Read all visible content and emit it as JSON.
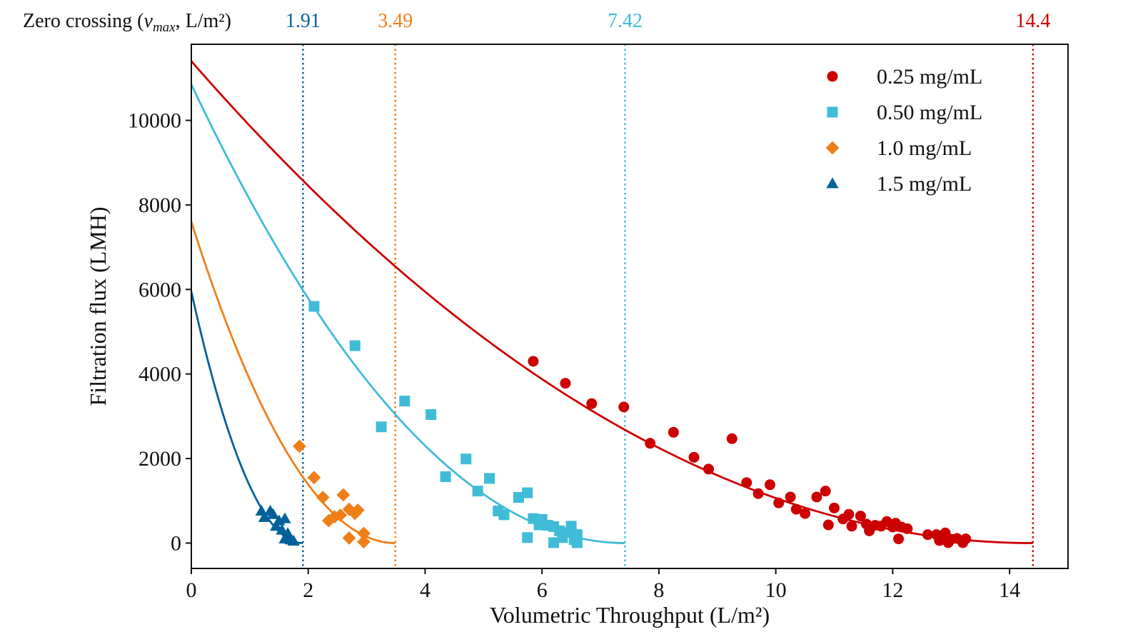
{
  "chart_data": {
    "type": "scatter",
    "xlabel": "Volumetric Throughput (L/m²)",
    "ylabel": "Filtration flux (LMH)",
    "xlim": [
      0,
      15
    ],
    "ylim": [
      -600,
      11800
    ],
    "xticks": [
      0,
      2,
      4,
      6,
      8,
      10,
      12,
      14
    ],
    "yticks": [
      0,
      2000,
      4000,
      6000,
      8000,
      10000
    ],
    "grid": false,
    "legend_position": "top-right",
    "zero_crossing": {
      "title_prefix": "Zero crossing (",
      "title_var": "v",
      "title_sub": "max",
      "title_suffix": ", L/m²)",
      "labels": [
        "1.91",
        "3.49",
        "7.42",
        "14.4"
      ]
    },
    "series": [
      {
        "name": "0.25 mg/mL",
        "marker": "circle",
        "color": "#cc0000",
        "fit": {
          "y0": 11400,
          "vmax": 14.4
        },
        "points": [
          [
            5.85,
            4300
          ],
          [
            6.4,
            3780
          ],
          [
            6.85,
            3300
          ],
          [
            7.4,
            3220
          ],
          [
            7.85,
            2360
          ],
          [
            8.25,
            2620
          ],
          [
            8.6,
            2030
          ],
          [
            8.85,
            1750
          ],
          [
            9.25,
            2470
          ],
          [
            9.5,
            1430
          ],
          [
            9.7,
            1170
          ],
          [
            9.9,
            1380
          ],
          [
            10.05,
            950
          ],
          [
            10.25,
            1090
          ],
          [
            10.35,
            800
          ],
          [
            10.5,
            700
          ],
          [
            10.7,
            1090
          ],
          [
            10.85,
            1230
          ],
          [
            10.9,
            430
          ],
          [
            11.0,
            830
          ],
          [
            11.15,
            570
          ],
          [
            11.25,
            680
          ],
          [
            11.3,
            400
          ],
          [
            11.45,
            640
          ],
          [
            11.55,
            450
          ],
          [
            11.6,
            290
          ],
          [
            11.7,
            420
          ],
          [
            11.8,
            400
          ],
          [
            11.9,
            510
          ],
          [
            12.0,
            380
          ],
          [
            12.05,
            470
          ],
          [
            12.1,
            100
          ],
          [
            12.15,
            380
          ],
          [
            12.25,
            340
          ],
          [
            12.6,
            200
          ],
          [
            12.75,
            200
          ],
          [
            12.8,
            60
          ],
          [
            12.9,
            240
          ],
          [
            12.95,
            10
          ],
          [
            13.0,
            90
          ],
          [
            13.1,
            110
          ],
          [
            13.2,
            10
          ],
          [
            13.25,
            100
          ],
          [
            13.2,
            40
          ]
        ]
      },
      {
        "name": "0.50 mg/mL",
        "marker": "square",
        "color": "#40bcd8",
        "fit": {
          "y0": 10850,
          "vmax": 7.42
        },
        "points": [
          [
            2.1,
            5600
          ],
          [
            2.8,
            4670
          ],
          [
            3.25,
            2750
          ],
          [
            3.65,
            3360
          ],
          [
            4.1,
            3040
          ],
          [
            4.35,
            1570
          ],
          [
            4.7,
            1990
          ],
          [
            4.9,
            1230
          ],
          [
            5.1,
            1530
          ],
          [
            5.25,
            760
          ],
          [
            5.35,
            670
          ],
          [
            5.6,
            1080
          ],
          [
            5.75,
            1190
          ],
          [
            5.75,
            130
          ],
          [
            5.85,
            580
          ],
          [
            5.95,
            430
          ],
          [
            6.0,
            560
          ],
          [
            6.1,
            420
          ],
          [
            6.2,
            390
          ],
          [
            6.2,
            10
          ],
          [
            6.3,
            290
          ],
          [
            6.35,
            130
          ],
          [
            6.45,
            250
          ],
          [
            6.5,
            400
          ],
          [
            6.55,
            80
          ],
          [
            6.6,
            200
          ],
          [
            6.6,
            10
          ]
        ]
      },
      {
        "name": "1.0 mg/mL",
        "marker": "diamond",
        "color": "#f07e17",
        "fit": {
          "y0": 7600,
          "vmax": 3.49
        },
        "points": [
          [
            1.85,
            2290
          ],
          [
            2.1,
            1550
          ],
          [
            2.25,
            1080
          ],
          [
            2.35,
            530
          ],
          [
            2.45,
            620
          ],
          [
            2.55,
            660
          ],
          [
            2.6,
            1140
          ],
          [
            2.7,
            800
          ],
          [
            2.7,
            120
          ],
          [
            2.8,
            700
          ],
          [
            2.85,
            780
          ],
          [
            2.95,
            30
          ],
          [
            2.95,
            230
          ]
        ]
      },
      {
        "name": "1.5 mg/mL",
        "marker": "triangle",
        "color": "#03619a",
        "fit": {
          "y0": 5950,
          "vmax": 1.91
        },
        "points": [
          [
            1.2,
            760
          ],
          [
            1.25,
            610
          ],
          [
            1.35,
            760
          ],
          [
            1.4,
            680
          ],
          [
            1.45,
            400
          ],
          [
            1.5,
            530
          ],
          [
            1.55,
            310
          ],
          [
            1.6,
            580
          ],
          [
            1.6,
            100
          ],
          [
            1.65,
            230
          ],
          [
            1.7,
            80
          ],
          [
            1.75,
            50
          ]
        ]
      }
    ]
  }
}
